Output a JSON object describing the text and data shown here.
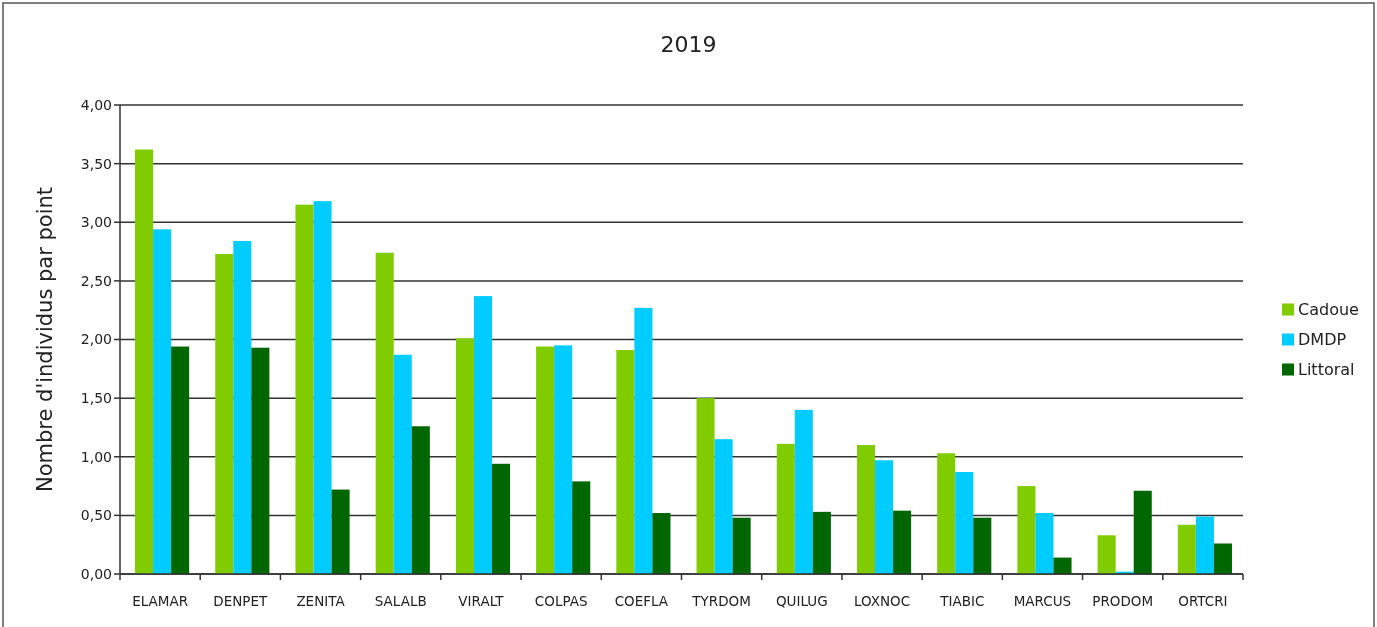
{
  "chart_data": {
    "type": "bar",
    "title": "2019",
    "ylabel": "Nombre d'individus par point",
    "categories": [
      "ELAMAR",
      "DENPET",
      "ZENITA",
      "SALALB",
      "VIRALT",
      "COLPAS",
      "COEFLA",
      "TYRDOM",
      "QUILUG",
      "LOXNOC",
      "TIABIC",
      "MARCUS",
      "PRODOM",
      "ORTCRI"
    ],
    "series": [
      {
        "name": "Cadoue",
        "color": "#80cc00",
        "values": [
          3.62,
          2.73,
          3.15,
          2.74,
          2.01,
          1.94,
          1.91,
          1.5,
          1.11,
          1.1,
          1.03,
          0.75,
          0.33,
          0.42
        ]
      },
      {
        "name": "DMDP",
        "color": "#00ccff",
        "values": [
          2.94,
          2.84,
          3.18,
          1.87,
          2.37,
          1.95,
          2.27,
          1.15,
          1.4,
          0.97,
          0.87,
          0.52,
          0.02,
          0.49
        ]
      },
      {
        "name": "Littoral",
        "color": "#006600",
        "values": [
          1.94,
          1.93,
          0.72,
          1.26,
          0.94,
          0.79,
          0.52,
          0.48,
          0.53,
          0.54,
          0.48,
          0.14,
          0.71,
          0.26
        ]
      }
    ],
    "ylim": [
      0,
      4
    ],
    "yticks": [
      {
        "value": 0,
        "label": "0,00"
      },
      {
        "value": 0.5,
        "label": "0,50"
      },
      {
        "value": 1,
        "label": "1,00"
      },
      {
        "value": 1.5,
        "label": "1,50"
      },
      {
        "value": 2,
        "label": "2,00"
      },
      {
        "value": 2.5,
        "label": "2,50"
      },
      {
        "value": 3,
        "label": "3,00"
      },
      {
        "value": 3.5,
        "label": "3,50"
      },
      {
        "value": 4,
        "label": "4,00"
      }
    ],
    "grid": "y",
    "legend": "right"
  }
}
